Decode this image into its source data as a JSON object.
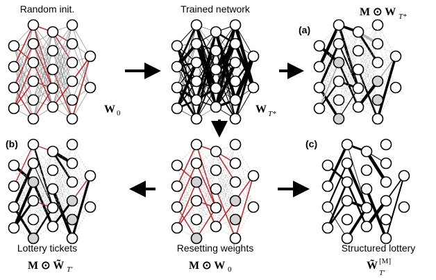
{
  "panels": {
    "random_init": {
      "title": "Random init.",
      "formula": {
        "main": "W",
        "sub": "0"
      }
    },
    "trained": {
      "title": "Trained network",
      "formula": {
        "main": "W",
        "sub": "T*"
      }
    },
    "mask_trained": {
      "tag": "(a)",
      "formula": {
        "main": "M ⊙ W",
        "sub": "T*"
      }
    },
    "lottery": {
      "tag": "(b)",
      "title": "Lottery tickets",
      "formula": {
        "main": "M ⊙ W̃",
        "sub": "T′"
      }
    },
    "resetting": {
      "title": "Resetting weights",
      "formula": {
        "main": "M ⊙ W",
        "sub": "0"
      }
    },
    "structured": {
      "tag": "(c)",
      "title": "Structured lottery",
      "formula": {
        "main": "W̃",
        "sup": "[M]",
        "sub": "T′"
      }
    }
  },
  "colors": {
    "node_fill": "#ffffff",
    "node_stroke": "#000000",
    "pruned_node_fill": "#d3d3d3",
    "random_edge": "#9a9a9a",
    "highlight_edge": "#c0282b",
    "trained_edge": "#000000",
    "pruned_edge": "#b5b5b5",
    "highlight_gray_edge": "#b0b0b0",
    "arrow": "#000000"
  },
  "icons": {
    "arrow": "right-arrow",
    "arrow_left": "left-arrow",
    "arrow_down": "down-arrow"
  }
}
